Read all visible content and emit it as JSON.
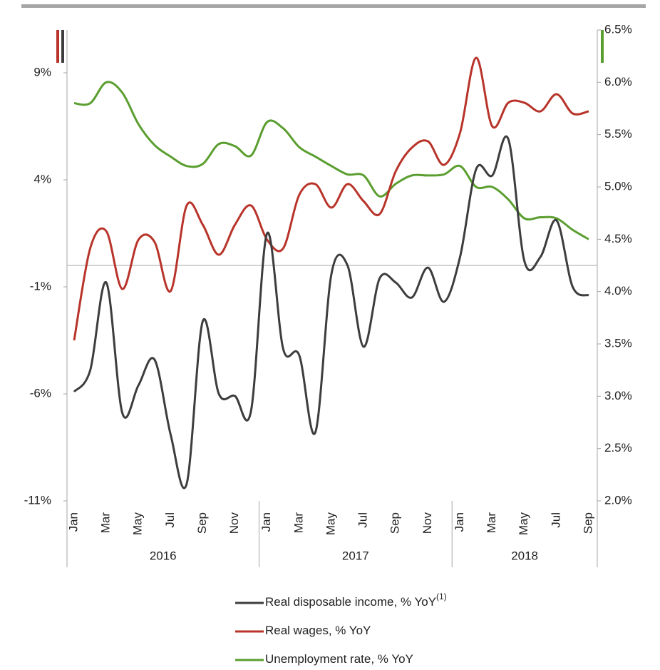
{
  "chart_data": {
    "type": "line",
    "categories": [
      "Jan",
      null,
      "Mar",
      null,
      "May",
      null,
      "Jul",
      null,
      "Sep",
      null,
      "Nov",
      null,
      "Jan",
      null,
      "Mar",
      null,
      "May",
      null,
      "Jul",
      null,
      "Sep",
      null,
      "Nov",
      null,
      "Jan",
      null,
      "Mar",
      null,
      "May",
      null,
      "Jul",
      null,
      "Sep"
    ],
    "groups": [
      {
        "label": "2016",
        "size": 12
      },
      {
        "label": "2017",
        "size": 12
      },
      {
        "label": "2018",
        "size": 9
      }
    ],
    "series": [
      {
        "name": "Real disposable income, % YoY",
        "name_superscript": "(1)",
        "color": "#3d3d3f",
        "axis": "y",
        "values": [
          -5.9,
          -4.9,
          -0.8,
          -6.9,
          -5.6,
          -4.4,
          -7.9,
          -10.2,
          -2.6,
          -6.0,
          -6.1,
          -6.8,
          1.5,
          -3.9,
          -4.2,
          -7.8,
          -0.4,
          0.0,
          -3.8,
          -0.6,
          -0.8,
          -1.5,
          -0.1,
          -1.7,
          0.4,
          4.5,
          4.2,
          5.9,
          0.2,
          0.4,
          2.1,
          -1.0,
          -1.4
        ]
      },
      {
        "name": "Real wages, % YoY",
        "color": "#b8342a",
        "axis": "y",
        "values": [
          -3.5,
          0.8,
          1.6,
          -1.1,
          1.2,
          1.1,
          -1.2,
          2.8,
          1.9,
          0.5,
          1.9,
          2.8,
          1.2,
          0.8,
          3.3,
          3.8,
          2.7,
          3.8,
          3.0,
          2.4,
          4.4,
          5.5,
          5.8,
          4.7,
          6.2,
          9.7,
          6.5,
          7.6,
          7.6,
          7.2,
          8.0,
          7.1,
          7.2
        ]
      },
      {
        "name": "Unemployment rate, % YoY",
        "color": "#5a9e2f",
        "axis": "y2",
        "values": [
          5.8,
          5.8,
          6.0,
          5.9,
          5.6,
          5.4,
          5.29,
          5.2,
          5.22,
          5.41,
          5.39,
          5.3,
          5.62,
          5.56,
          5.38,
          5.29,
          5.2,
          5.12,
          5.11,
          4.91,
          5.03,
          5.11,
          5.11,
          5.12,
          5.2,
          5.0,
          5.0,
          4.88,
          4.7,
          4.71,
          4.7,
          4.59,
          4.5
        ]
      }
    ],
    "ylim": [
      -11,
      11
    ],
    "yticks": [
      {
        "value": -11,
        "label": "-11%"
      },
      {
        "value": -6,
        "label": "-6%"
      },
      {
        "value": -1,
        "label": "-1%"
      },
      {
        "value": 4,
        "label": "4%"
      },
      {
        "value": 9,
        "label": "9%"
      }
    ],
    "y2lim": [
      2.0,
      6.5
    ],
    "y2ticks": [
      {
        "value": 2.0,
        "label": "2.0%"
      },
      {
        "value": 2.5,
        "label": "2.5%"
      },
      {
        "value": 3.0,
        "label": "3.0%"
      },
      {
        "value": 3.5,
        "label": "3.5%"
      },
      {
        "value": 4.0,
        "label": "4.0%"
      },
      {
        "value": 4.5,
        "label": "4.5%"
      },
      {
        "value": 5.0,
        "label": "5.0%"
      },
      {
        "value": 5.5,
        "label": "5.5%"
      },
      {
        "value": 6.0,
        "label": "6.0%"
      },
      {
        "value": 6.5,
        "label": "6.5%"
      }
    ]
  }
}
